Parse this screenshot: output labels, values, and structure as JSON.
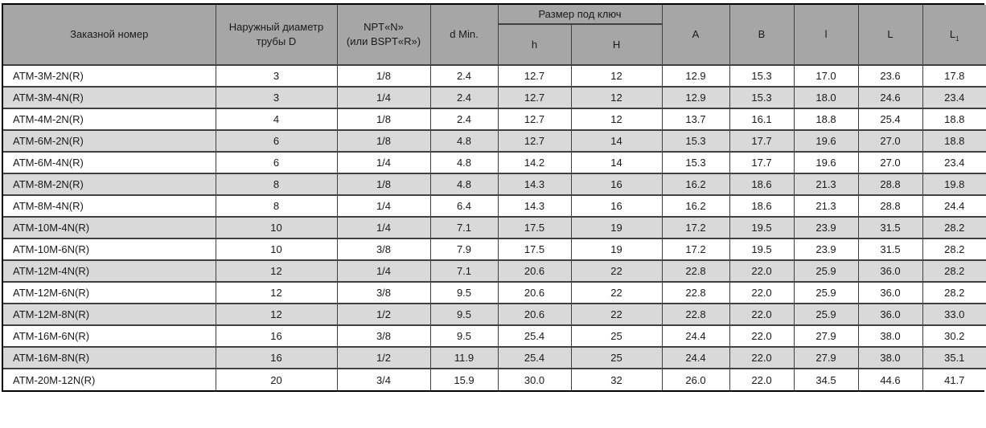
{
  "colors": {
    "header_bg": "#a6a6a6",
    "row_bg": "#ffffff",
    "row_alt_bg": "#d9d9d9",
    "border_outer": "#000000",
    "border_inner": "#404040",
    "text": "#1a1a1a"
  },
  "table": {
    "headers": {
      "order_number": "Заказной номер",
      "outer_diameter": "Наружный диаметр\nтрубы D",
      "thread": "NPT«N»\n(или BSPT«R»)",
      "d_min": "d Min.",
      "wrench_group": "Размер под ключ",
      "wrench_h": "h",
      "wrench_H": "H",
      "col_a": "A",
      "col_b": "B",
      "col_l_small": "l",
      "col_l_big": "L",
      "col_l1_base": "L",
      "col_l1_sub": "1"
    },
    "rows": [
      {
        "order": "ATM-3M-2N(R)",
        "d_tube": "3",
        "thread": "1/8",
        "d_min": "2.4",
        "h": "12.7",
        "H": "12",
        "a": "12.9",
        "b": "15.3",
        "l": "17.0",
        "L": "23.6",
        "L1": "17.8"
      },
      {
        "order": "ATM-3M-4N(R)",
        "d_tube": "3",
        "thread": "1/4",
        "d_min": "2.4",
        "h": "12.7",
        "H": "12",
        "a": "12.9",
        "b": "15.3",
        "l": "18.0",
        "L": "24.6",
        "L1": "23.4"
      },
      {
        "order": "ATM-4M-2N(R)",
        "d_tube": "4",
        "thread": "1/8",
        "d_min": "2.4",
        "h": "12.7",
        "H": "12",
        "a": "13.7",
        "b": "16.1",
        "l": "18.8",
        "L": "25.4",
        "L1": "18.8"
      },
      {
        "order": "ATM-6M-2N(R)",
        "d_tube": "6",
        "thread": "1/8",
        "d_min": "4.8",
        "h": "12.7",
        "H": "14",
        "a": "15.3",
        "b": "17.7",
        "l": "19.6",
        "L": "27.0",
        "L1": "18.8"
      },
      {
        "order": "ATM-6M-4N(R)",
        "d_tube": "6",
        "thread": "1/4",
        "d_min": "4.8",
        "h": "14.2",
        "H": "14",
        "a": "15.3",
        "b": "17.7",
        "l": "19.6",
        "L": "27.0",
        "L1": "23.4"
      },
      {
        "order": "ATM-8M-2N(R)",
        "d_tube": "8",
        "thread": "1/8",
        "d_min": "4.8",
        "h": "14.3",
        "H": "16",
        "a": "16.2",
        "b": "18.6",
        "l": "21.3",
        "L": "28.8",
        "L1": "19.8"
      },
      {
        "order": "ATM-8M-4N(R)",
        "d_tube": "8",
        "thread": "1/4",
        "d_min": "6.4",
        "h": "14.3",
        "H": "16",
        "a": "16.2",
        "b": "18.6",
        "l": "21.3",
        "L": "28.8",
        "L1": "24.4"
      },
      {
        "order": "ATM-10M-4N(R)",
        "d_tube": "10",
        "thread": "1/4",
        "d_min": "7.1",
        "h": "17.5",
        "H": "19",
        "a": "17.2",
        "b": "19.5",
        "l": "23.9",
        "L": "31.5",
        "L1": "28.2"
      },
      {
        "order": "ATM-10M-6N(R)",
        "d_tube": "10",
        "thread": "3/8",
        "d_min": "7.9",
        "h": "17.5",
        "H": "19",
        "a": "17.2",
        "b": "19.5",
        "l": "23.9",
        "L": "31.5",
        "L1": "28.2"
      },
      {
        "order": "ATM-12M-4N(R)",
        "d_tube": "12",
        "thread": "1/4",
        "d_min": "7.1",
        "h": "20.6",
        "H": "22",
        "a": "22.8",
        "b": "22.0",
        "l": "25.9",
        "L": "36.0",
        "L1": "28.2"
      },
      {
        "order": "ATM-12M-6N(R)",
        "d_tube": "12",
        "thread": "3/8",
        "d_min": "9.5",
        "h": "20.6",
        "H": "22",
        "a": "22.8",
        "b": "22.0",
        "l": "25.9",
        "L": "36.0",
        "L1": "28.2"
      },
      {
        "order": "ATM-12M-8N(R)",
        "d_tube": "12",
        "thread": "1/2",
        "d_min": "9.5",
        "h": "20.6",
        "H": "22",
        "a": "22.8",
        "b": "22.0",
        "l": "25.9",
        "L": "36.0",
        "L1": "33.0"
      },
      {
        "order": "ATM-16M-6N(R)",
        "d_tube": "16",
        "thread": "3/8",
        "d_min": "9.5",
        "h": "25.4",
        "H": "25",
        "a": "24.4",
        "b": "22.0",
        "l": "27.9",
        "L": "38.0",
        "L1": "30.2"
      },
      {
        "order": "ATM-16M-8N(R)",
        "d_tube": "16",
        "thread": "1/2",
        "d_min": "11.9",
        "h": "25.4",
        "H": "25",
        "a": "24.4",
        "b": "22.0",
        "l": "27.9",
        "L": "38.0",
        "L1": "35.1"
      },
      {
        "order": "ATM-20M-12N(R)",
        "d_tube": "20",
        "thread": "3/4",
        "d_min": "15.9",
        "h": "30.0",
        "H": "32",
        "a": "26.0",
        "b": "22.0",
        "l": "34.5",
        "L": "44.6",
        "L1": "41.7"
      }
    ]
  }
}
